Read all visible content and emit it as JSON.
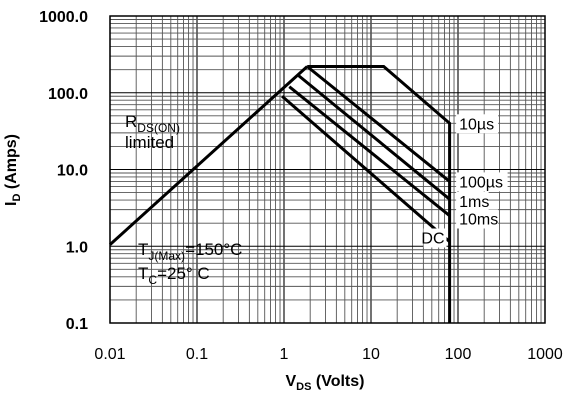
{
  "chart_data": {
    "type": "line",
    "title": "",
    "x_scale": "log",
    "y_scale": "log",
    "xlim": [
      0.01,
      1000
    ],
    "ylim": [
      0.1,
      1000
    ],
    "grid": true,
    "x_ticks": [
      "0.01",
      "0.1",
      "1",
      "10",
      "100",
      "1000"
    ],
    "y_ticks": [
      "0.1",
      "1.0",
      "10.0",
      "100.0",
      "1000.0"
    ],
    "xlabel": {
      "main": "V",
      "sub": "DS",
      "rest": " (Volts)"
    },
    "ylabel": {
      "main": "I",
      "sub": "D",
      "rest": " (Amps)"
    },
    "series": [
      {
        "name": "RDS(ON) limited",
        "x": [
          0.01,
          1.85
        ],
        "y": [
          1.05,
          220
        ]
      },
      {
        "name": "10µs",
        "x": [
          1.85,
          14,
          80,
          80
        ],
        "y": [
          220,
          220,
          40,
          0.1
        ]
      },
      {
        "name": "100µs",
        "x": [
          1.85,
          80
        ],
        "y": [
          220,
          7
        ]
      },
      {
        "name": "1ms",
        "x": [
          1.45,
          80
        ],
        "y": [
          170,
          4.1
        ]
      },
      {
        "name": "10ms",
        "x": [
          1.15,
          80
        ],
        "y": [
          120,
          2.5
        ]
      },
      {
        "name": "DC",
        "x": [
          0.95,
          80
        ],
        "y": [
          90,
          1.15
        ]
      }
    ],
    "curve_labels": [
      {
        "text": "10µs",
        "x": 103,
        "y": 40
      },
      {
        "text": "100µs",
        "x": 103,
        "y": 7
      },
      {
        "text": "1ms",
        "x": 103,
        "y": 3.9
      },
      {
        "text": "10ms",
        "x": 103,
        "y": 2.3
      },
      {
        "text": "DC",
        "x": 70,
        "y": 1.3
      }
    ],
    "annotations": {
      "rds": {
        "main": "R",
        "sub": "DS(ON)",
        "line2": "limited"
      },
      "tj": {
        "main": "T",
        "sub": "J(Max)",
        "rest": "=150°C"
      },
      "tc": {
        "main": "T",
        "sub": "C",
        "rest": "=25°  C"
      }
    }
  }
}
